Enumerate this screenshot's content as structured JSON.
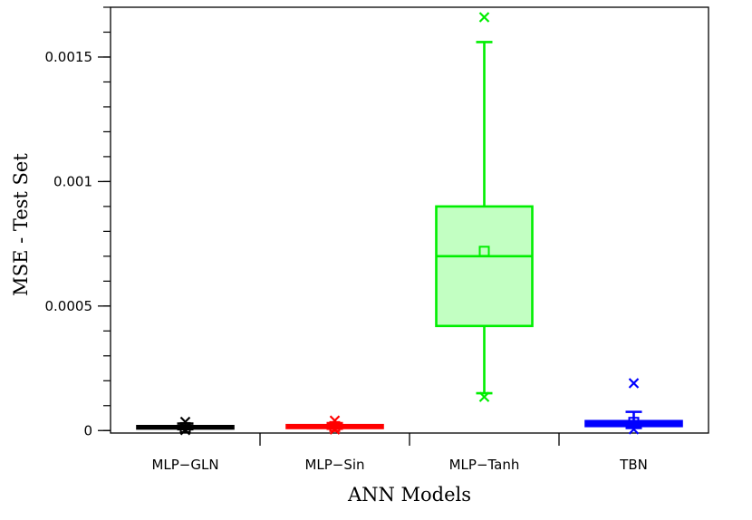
{
  "chart_data": {
    "type": "box",
    "xlabel": "ANN Models",
    "ylabel": "MSE - Test Set",
    "ylim": [
      -1e-05,
      0.0017
    ],
    "yticks": [
      {
        "value": 0,
        "label": "0"
      },
      {
        "value": 0.0005,
        "label": "0.0005"
      },
      {
        "value": 0.001,
        "label": "0.001"
      },
      {
        "value": 0.0015,
        "label": "0.0015"
      }
    ],
    "grid": false,
    "legend": "none",
    "boxes": [
      {
        "category": "MLP−GLN",
        "color": "#000000",
        "fill": "#000000",
        "whisker_low": 5e-06,
        "q1": 8e-06,
        "median": 1.1e-05,
        "q3": 1.8e-05,
        "whisker_high": 2.8e-05,
        "mean": 1.2e-05,
        "outliers_low": [
          2e-06
        ],
        "outliers_high": [
          3.5e-05
        ]
      },
      {
        "category": "MLP−Sin",
        "color": "#ff0000",
        "fill": "#ff0000",
        "whisker_low": 7e-06,
        "q1": 1e-05,
        "median": 1.5e-05,
        "q3": 2.2e-05,
        "whisker_high": 3e-05,
        "mean": 1.6e-05,
        "outliers_low": [
          4e-06
        ],
        "outliers_high": [
          4e-05
        ]
      },
      {
        "category": "MLP−Tanh",
        "color": "#00ee00",
        "fill": "#c2ffc2",
        "whisker_low": 0.00015,
        "q1": 0.00042,
        "median": 0.0007,
        "q3": 0.0009,
        "whisker_high": 0.00156,
        "mean": 0.00072,
        "outliers_low": [
          0.000135
        ],
        "outliers_high": [
          0.00166
        ]
      },
      {
        "category": "TBN",
        "color": "#0000ff",
        "fill": "#0000ff",
        "whisker_low": 1e-05,
        "q1": 1.8e-05,
        "median": 2.6e-05,
        "q3": 3.8e-05,
        "whisker_high": 7.5e-05,
        "mean": 3.3e-05,
        "outliers_low": [
          5e-06
        ],
        "outliers_high": [
          0.00019
        ]
      }
    ]
  }
}
